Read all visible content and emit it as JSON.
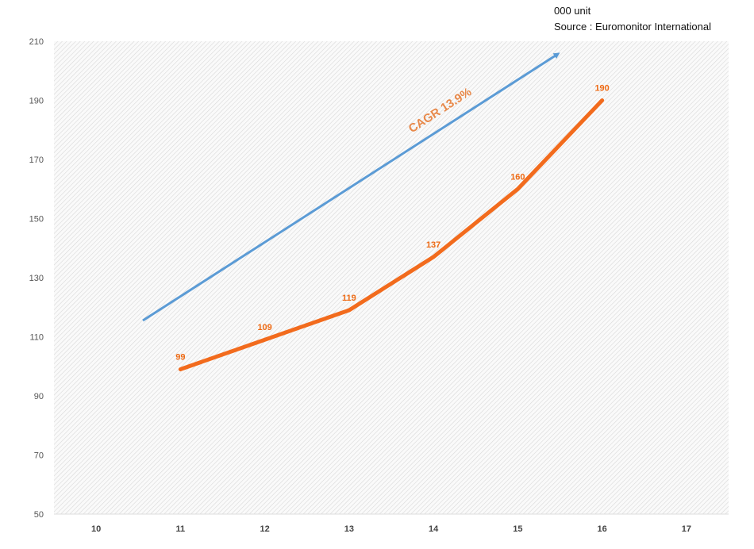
{
  "notes": {
    "unit": "000 unit",
    "source": "Source : Euromonitor International"
  },
  "chart_data": {
    "type": "line",
    "categories": [
      "10",
      "11",
      "12",
      "13",
      "14",
      "15",
      "16",
      "17"
    ],
    "x": [
      "11",
      "12",
      "13",
      "14",
      "15",
      "16"
    ],
    "values": [
      99,
      109,
      119,
      137,
      160,
      190
    ],
    "data_labels": [
      "99",
      "109",
      "119",
      "137",
      "160",
      "190"
    ],
    "ylim": [
      50,
      210
    ],
    "yticks": [
      "50",
      "70",
      "90",
      "110",
      "130",
      "150",
      "170",
      "190",
      "210"
    ],
    "line_color": "#f26b1d",
    "annotation": {
      "text": "CAGR 13.9%",
      "arrow_color": "#5b9bd5",
      "text_color": "#e8894a"
    },
    "background": "diagonal hatch",
    "grid": false
  }
}
